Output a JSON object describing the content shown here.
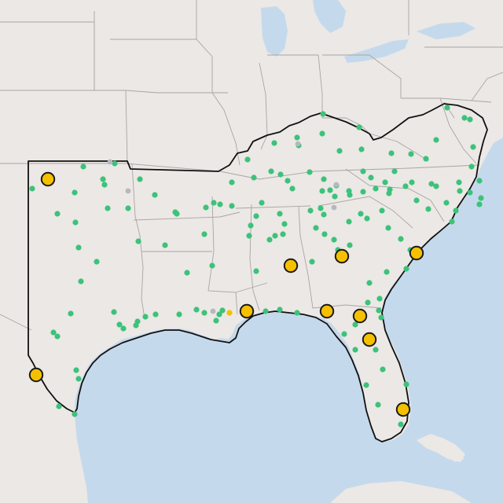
{
  "colors": {
    "land": "#ebe8e5",
    "water": "#c5d9ec",
    "state_border": "#a9a5a2",
    "region_outline": "#111111",
    "station_green": "#3cc27a",
    "station_gray": "#b5b9bd",
    "station_yellow": "#f5c000",
    "marker_outline": "#1a1a1a"
  },
  "icons": {
    "small_station": "filled-circle-icon",
    "major_station": "outlined-circle-icon"
  },
  "layers": {
    "region_outline": "southeast-region-boundary",
    "state_borders": "us-state-boundaries",
    "water": "gulf-atlantic-great-lakes"
  }
}
